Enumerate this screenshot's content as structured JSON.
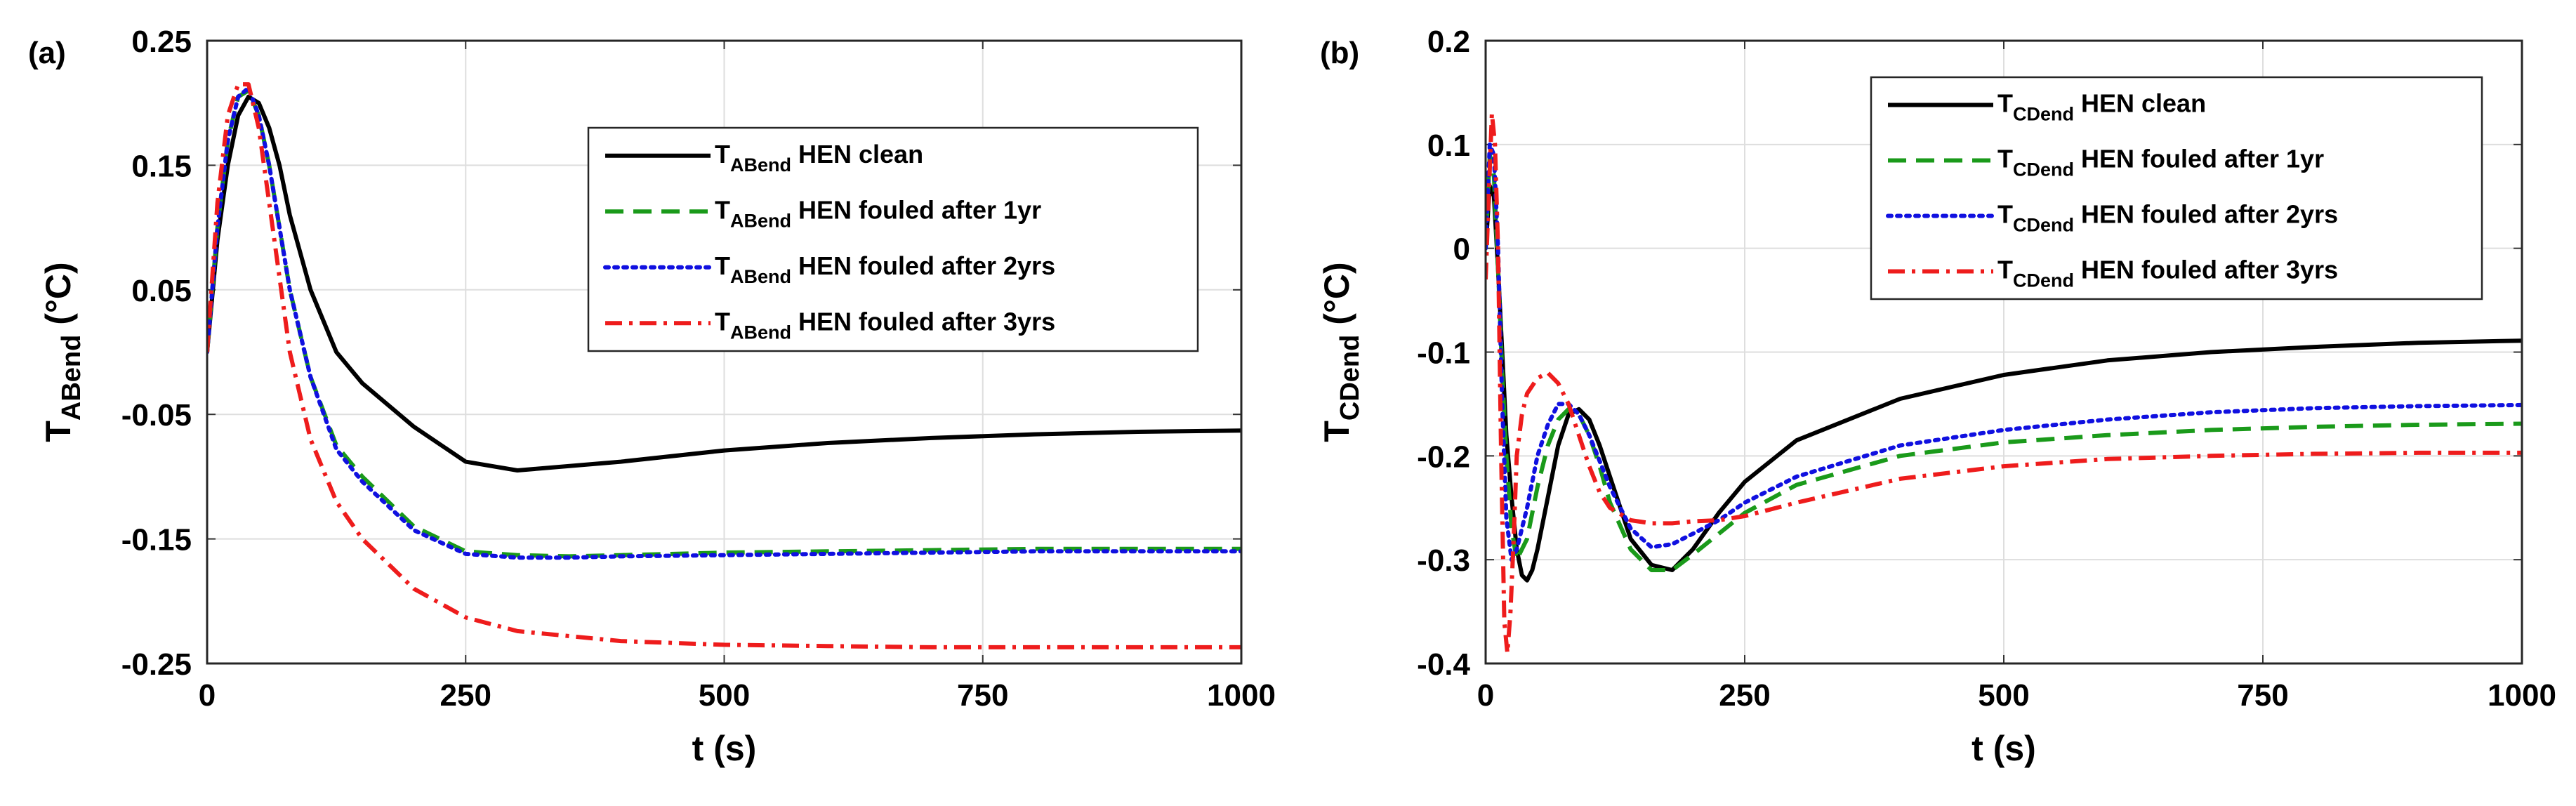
{
  "chart_data": [
    {
      "type": "line",
      "panel_label": "(a)",
      "xlabel": "t (s)",
      "ylabel_main": "T",
      "ylabel_sub": "ABend",
      "ylabel_unit": " (°C)",
      "xlim": [
        0,
        1000
      ],
      "ylim": [
        -0.25,
        0.25
      ],
      "xticks": [
        0,
        250,
        500,
        750,
        1000
      ],
      "yticks": [
        -0.25,
        -0.15,
        -0.05,
        0.05,
        0.15,
        0.25
      ],
      "ytick_labels": [
        "-0.25",
        "-0.15",
        "-0.05",
        "0.05",
        "0.15",
        "0.25"
      ],
      "grid": true,
      "legend_position": "top-right",
      "series": [
        {
          "name": "HEN clean",
          "legend_main": "T",
          "legend_sub": "ABend",
          "legend_rest": " HEN clean",
          "color": "#000000",
          "style": "solid",
          "x": [
            0,
            10,
            20,
            30,
            40,
            50,
            60,
            70,
            80,
            100,
            125,
            150,
            200,
            250,
            300,
            400,
            500,
            600,
            700,
            800,
            900,
            1000
          ],
          "y": [
            0,
            0.09,
            0.15,
            0.19,
            0.205,
            0.2,
            0.18,
            0.15,
            0.11,
            0.05,
            0.0,
            -0.025,
            -0.06,
            -0.088,
            -0.095,
            -0.088,
            -0.079,
            -0.073,
            -0.069,
            -0.066,
            -0.064,
            -0.063
          ]
        },
        {
          "name": "HEN fouled after 1yr",
          "legend_main": "T",
          "legend_sub": "ABend",
          "legend_rest": " HEN fouled after 1yr",
          "color": "#1a9a1a",
          "style": "dashed",
          "x": [
            0,
            10,
            20,
            30,
            40,
            50,
            60,
            70,
            80,
            100,
            125,
            150,
            200,
            250,
            300,
            350,
            400,
            500,
            600,
            700,
            800,
            900,
            1000
          ],
          "y": [
            0,
            0.1,
            0.17,
            0.205,
            0.21,
            0.19,
            0.15,
            0.1,
            0.05,
            -0.02,
            -0.075,
            -0.1,
            -0.14,
            -0.16,
            -0.163,
            -0.164,
            -0.163,
            -0.161,
            -0.16,
            -0.159,
            -0.158,
            -0.158,
            -0.158
          ]
        },
        {
          "name": "HEN fouled after 2yrs",
          "legend_main": "T",
          "legend_sub": "ABend",
          "legend_rest": " HEN fouled after 2yrs",
          "color": "#1010e0",
          "style": "dotted",
          "x": [
            0,
            10,
            20,
            30,
            40,
            50,
            60,
            70,
            80,
            100,
            125,
            150,
            200,
            250,
            300,
            350,
            400,
            500,
            600,
            700,
            800,
            900,
            1000
          ],
          "y": [
            0,
            0.1,
            0.17,
            0.205,
            0.212,
            0.19,
            0.15,
            0.1,
            0.05,
            -0.02,
            -0.078,
            -0.104,
            -0.143,
            -0.162,
            -0.165,
            -0.165,
            -0.164,
            -0.163,
            -0.162,
            -0.161,
            -0.16,
            -0.16,
            -0.16
          ]
        },
        {
          "name": "HEN fouled after 3yrs",
          "legend_main": "T",
          "legend_sub": "ABend",
          "legend_rest": " HEN fouled after 3yrs",
          "color": "#ee1c1c",
          "style": "dashdot",
          "x": [
            0,
            10,
            20,
            30,
            40,
            50,
            60,
            70,
            80,
            100,
            125,
            150,
            200,
            250,
            300,
            400,
            500,
            600,
            700,
            800,
            900,
            1000
          ],
          "y": [
            0,
            0.12,
            0.19,
            0.215,
            0.215,
            0.18,
            0.12,
            0.06,
            0.0,
            -0.07,
            -0.12,
            -0.15,
            -0.19,
            -0.213,
            -0.224,
            -0.232,
            -0.235,
            -0.236,
            -0.237,
            -0.237,
            -0.237,
            -0.237
          ]
        }
      ]
    },
    {
      "type": "line",
      "panel_label": "(b)",
      "xlabel": "t (s)",
      "ylabel_main": "T",
      "ylabel_sub": "CDend",
      "ylabel_unit": " (°C)",
      "xlim": [
        0,
        1000
      ],
      "ylim": [
        -0.4,
        0.2
      ],
      "xticks": [
        0,
        250,
        500,
        750,
        1000
      ],
      "yticks": [
        -0.4,
        -0.3,
        -0.2,
        -0.1,
        0,
        0.1,
        0.2
      ],
      "ytick_labels": [
        "-0.4",
        "-0.3",
        "-0.2",
        "-0.1",
        "0",
        "0.1",
        "0.2"
      ],
      "grid": true,
      "legend_position": "top-right",
      "series": [
        {
          "name": "HEN clean",
          "legend_main": "T",
          "legend_sub": "CDend",
          "legend_rest": " HEN clean",
          "color": "#000000",
          "style": "solid",
          "x": [
            0,
            4,
            8,
            12,
            16,
            20,
            25,
            30,
            35,
            40,
            45,
            50,
            60,
            70,
            80,
            90,
            100,
            110,
            120,
            140,
            160,
            180,
            200,
            225,
            250,
            300,
            400,
            500,
            600,
            700,
            800,
            900,
            1000
          ],
          "y": [
            0,
            0.06,
            0.05,
            -0.02,
            -0.1,
            -0.18,
            -0.24,
            -0.29,
            -0.315,
            -0.32,
            -0.31,
            -0.29,
            -0.24,
            -0.19,
            -0.16,
            -0.155,
            -0.165,
            -0.19,
            -0.22,
            -0.28,
            -0.305,
            -0.31,
            -0.29,
            -0.255,
            -0.225,
            -0.185,
            -0.145,
            -0.122,
            -0.108,
            -0.1,
            -0.095,
            -0.091,
            -0.089
          ]
        },
        {
          "name": "HEN fouled after 1yr",
          "legend_main": "T",
          "legend_sub": "CDend",
          "legend_rest": " HEN fouled after 1yr",
          "color": "#1a9a1a",
          "style": "dashed",
          "x": [
            0,
            4,
            8,
            12,
            16,
            20,
            25,
            30,
            40,
            50,
            60,
            70,
            80,
            90,
            100,
            110,
            120,
            140,
            160,
            180,
            200,
            225,
            250,
            300,
            400,
            500,
            600,
            700,
            800,
            900,
            1000
          ],
          "y": [
            0,
            0.09,
            0.07,
            -0.02,
            -0.12,
            -0.2,
            -0.27,
            -0.3,
            -0.28,
            -0.23,
            -0.19,
            -0.165,
            -0.155,
            -0.16,
            -0.18,
            -0.21,
            -0.245,
            -0.29,
            -0.31,
            -0.31,
            -0.295,
            -0.275,
            -0.255,
            -0.228,
            -0.2,
            -0.187,
            -0.18,
            -0.175,
            -0.172,
            -0.17,
            -0.169
          ]
        },
        {
          "name": "HEN fouled after 2yrs",
          "legend_main": "T",
          "legend_sub": "CDend",
          "legend_rest": " HEN fouled after 2yrs",
          "color": "#1010e0",
          "style": "dotted",
          "x": [
            0,
            4,
            8,
            12,
            16,
            20,
            25,
            30,
            40,
            50,
            60,
            70,
            80,
            90,
            100,
            110,
            120,
            140,
            160,
            180,
            200,
            225,
            250,
            300,
            400,
            500,
            600,
            700,
            800,
            900,
            1000
          ],
          "y": [
            0,
            0.1,
            0.09,
            0.0,
            -0.15,
            -0.26,
            -0.3,
            -0.29,
            -0.25,
            -0.2,
            -0.17,
            -0.15,
            -0.15,
            -0.16,
            -0.18,
            -0.205,
            -0.23,
            -0.27,
            -0.288,
            -0.285,
            -0.275,
            -0.262,
            -0.245,
            -0.22,
            -0.19,
            -0.175,
            -0.165,
            -0.158,
            -0.154,
            -0.152,
            -0.151
          ]
        },
        {
          "name": "HEN fouled after 3yrs",
          "legend_main": "T",
          "legend_sub": "CDend",
          "legend_rest": " HEN fouled after 3yrs",
          "color": "#ee1c1c",
          "style": "dashdot",
          "x": [
            0,
            3,
            6,
            9,
            12,
            15,
            18,
            21,
            24,
            27,
            30,
            35,
            40,
            50,
            60,
            70,
            80,
            90,
            100,
            110,
            120,
            140,
            160,
            180,
            200,
            225,
            250,
            300,
            400,
            500,
            600,
            700,
            800,
            900,
            1000
          ],
          "y": [
            -0.03,
            0.05,
            0.13,
            0.1,
            0.0,
            -0.2,
            -0.36,
            -0.39,
            -0.35,
            -0.28,
            -0.2,
            -0.16,
            -0.14,
            -0.125,
            -0.12,
            -0.13,
            -0.15,
            -0.18,
            -0.21,
            -0.235,
            -0.25,
            -0.262,
            -0.265,
            -0.265,
            -0.263,
            -0.262,
            -0.258,
            -0.245,
            -0.222,
            -0.21,
            -0.203,
            -0.2,
            -0.198,
            -0.197,
            -0.197
          ]
        }
      ]
    }
  ]
}
